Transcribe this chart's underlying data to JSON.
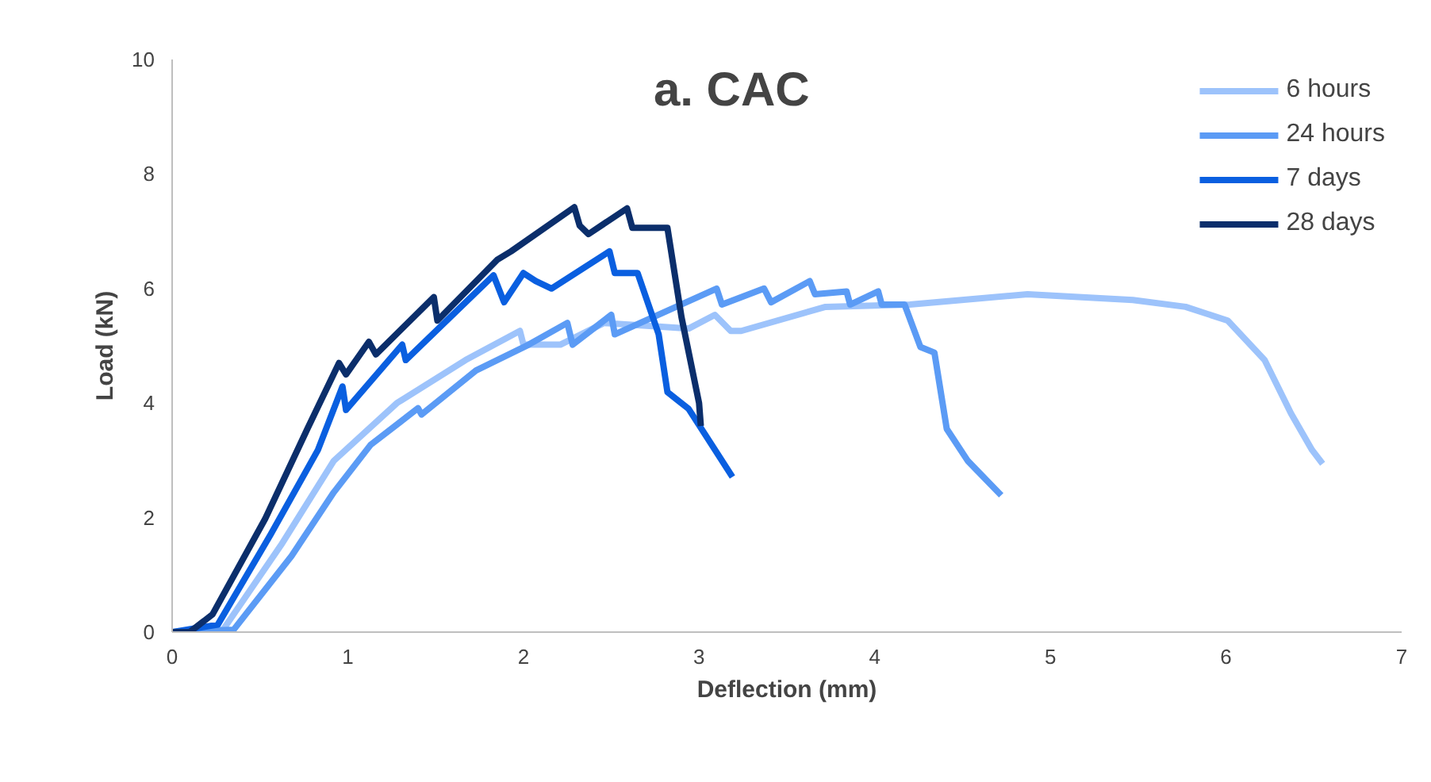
{
  "chart_data": {
    "type": "line",
    "title": "a. CAC",
    "xlabel": "Deflection (mm)",
    "ylabel": "Load (kN)",
    "xlim": [
      0,
      7
    ],
    "ylim": [
      0,
      10
    ],
    "xticks": [
      0,
      1,
      2,
      3,
      4,
      5,
      6,
      7
    ],
    "yticks": [
      0,
      2,
      4,
      6,
      8,
      10
    ],
    "grid": false,
    "legend": "top right",
    "marker": "none",
    "line_style": "solid",
    "series": [
      {
        "name": "6 hours",
        "color": "#9dc3fb",
        "x": [
          0,
          0.29,
          0.62,
          0.92,
          1.28,
          1.67,
          1.98,
          2.0,
          2.21,
          2.46,
          2.94,
          3.09,
          3.18,
          3.24,
          3.72,
          4.2,
          4.87,
          5.47,
          5.77,
          6.01,
          6.22,
          6.37,
          6.49,
          6.55
        ],
        "values": [
          0,
          0.04,
          1.52,
          2.99,
          4.0,
          4.75,
          5.26,
          5.02,
          5.02,
          5.4,
          5.3,
          5.54,
          5.26,
          5.26,
          5.68,
          5.72,
          5.9,
          5.8,
          5.68,
          5.44,
          4.75,
          3.82,
          3.18,
          2.94
        ]
      },
      {
        "name": "24 hours",
        "color": "#5b9bf5",
        "x": [
          0,
          0.35,
          0.68,
          0.92,
          1.13,
          1.4,
          1.42,
          1.73,
          2.03,
          2.25,
          2.28,
          2.5,
          2.52,
          3.1,
          3.13,
          3.37,
          3.41,
          3.63,
          3.66,
          3.84,
          3.86,
          4.02,
          4.04,
          4.17,
          4.26,
          4.34,
          4.41,
          4.53,
          4.72
        ],
        "values": [
          0,
          0.04,
          1.33,
          2.44,
          3.27,
          3.91,
          3.8,
          4.57,
          5.02,
          5.4,
          5.02,
          5.54,
          5.2,
          6.0,
          5.72,
          6.0,
          5.76,
          6.13,
          5.9,
          5.95,
          5.72,
          5.95,
          5.72,
          5.72,
          4.98,
          4.88,
          3.55,
          2.99,
          2.39
        ]
      },
      {
        "name": "7 days",
        "color": "#0a5fe0",
        "x": [
          0,
          0.26,
          0.56,
          0.83,
          0.97,
          0.99,
          1.31,
          1.33,
          1.83,
          1.89,
          2.0,
          2.07,
          2.16,
          2.49,
          2.52,
          2.65,
          2.77,
          2.82,
          2.94,
          3.19
        ],
        "values": [
          0,
          0.13,
          1.7,
          3.18,
          4.29,
          3.88,
          5.02,
          4.75,
          6.23,
          5.76,
          6.27,
          6.13,
          6.0,
          6.65,
          6.27,
          6.27,
          5.2,
          4.19,
          3.9,
          2.71
        ]
      },
      {
        "name": "28 days",
        "color": "#0b2e6b",
        "x": [
          0,
          0.1,
          0.23,
          0.53,
          0.77,
          0.95,
          0.99,
          1.12,
          1.16,
          1.49,
          1.51,
          1.85,
          1.93,
          2.29,
          2.32,
          2.37,
          2.59,
          2.62,
          2.82,
          2.9,
          3.0,
          3.01
        ],
        "values": [
          0,
          0,
          0.31,
          1.98,
          3.55,
          4.7,
          4.5,
          5.07,
          4.85,
          5.85,
          5.44,
          6.5,
          6.65,
          7.42,
          7.1,
          6.95,
          7.4,
          7.06,
          7.06,
          5.5,
          4.0,
          3.6
        ]
      }
    ]
  }
}
